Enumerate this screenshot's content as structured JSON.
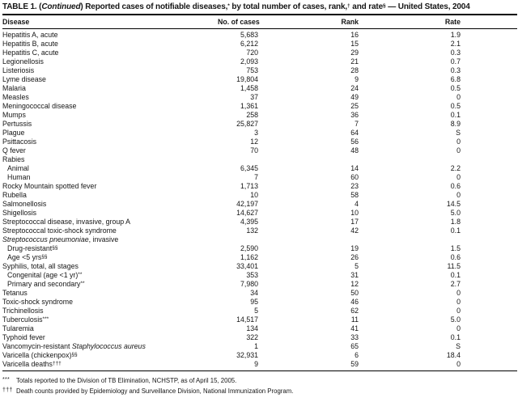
{
  "title": {
    "part1": "TABLE 1. (",
    "continued": "Continued",
    "part2": ") Reported cases of notifiable diseases,",
    "sup1": "*",
    "part3": " by total number of cases, rank,",
    "sup2": "†",
    "part4": " and rate",
    "sup3": "§",
    "part5": " — United States, 2004"
  },
  "table": {
    "headers": {
      "disease": "Disease",
      "cases": "No. of cases",
      "rank": "Rank",
      "rate": "Rate"
    },
    "rows": [
      {
        "pre": "Hepatitis A, acute",
        "cases": "5,683",
        "rank": "16",
        "rate": "1.9"
      },
      {
        "pre": "Hepatitis B, acute",
        "cases": "6,212",
        "rank": "15",
        "rate": "2.1"
      },
      {
        "pre": "Hepatitis C, acute",
        "cases": "720",
        "rank": "29",
        "rate": "0.3"
      },
      {
        "pre": "Legionellosis",
        "cases": "2,093",
        "rank": "21",
        "rate": "0.7"
      },
      {
        "pre": "Listeriosis",
        "cases": "753",
        "rank": "28",
        "rate": "0.3"
      },
      {
        "pre": "Lyme disease",
        "cases": "19,804",
        "rank": "9",
        "rate": "6.8"
      },
      {
        "pre": "Malaria",
        "cases": "1,458",
        "rank": "24",
        "rate": "0.5"
      },
      {
        "pre": "Measles",
        "cases": "37",
        "rank": "49",
        "rate": "0"
      },
      {
        "pre": "Meningococcal disease",
        "cases": "1,361",
        "rank": "25",
        "rate": "0.5"
      },
      {
        "pre": "Mumps",
        "cases": "258",
        "rank": "36",
        "rate": "0.1"
      },
      {
        "pre": "Pertussis",
        "cases": "25,827",
        "rank": "7",
        "rate": "8.9"
      },
      {
        "pre": "Plague",
        "cases": "3",
        "rank": "64",
        "rate": "S"
      },
      {
        "pre": "Psittacosis",
        "cases": "12",
        "rank": "56",
        "rate": "0"
      },
      {
        "pre": "Q fever",
        "cases": "70",
        "rank": "48",
        "rate": "0"
      },
      {
        "pre": "Rabies",
        "cases": "",
        "rank": "",
        "rate": ""
      },
      {
        "pre": "Animal",
        "indent": true,
        "cases": "6,345",
        "rank": "14",
        "rate": "2.2"
      },
      {
        "pre": "Human",
        "indent": true,
        "cases": "7",
        "rank": "60",
        "rate": "0"
      },
      {
        "pre": "Rocky Mountain spotted fever",
        "cases": "1,713",
        "rank": "23",
        "rate": "0.6"
      },
      {
        "pre": "Rubella",
        "cases": "10",
        "rank": "58",
        "rate": "0"
      },
      {
        "pre": "Salmonellosis",
        "cases": "42,197",
        "rank": "4",
        "rate": "14.5"
      },
      {
        "pre": "Shigellosis",
        "cases": "14,627",
        "rank": "10",
        "rate": "5.0"
      },
      {
        "pre": "Streptococcal disease, invasive, group A",
        "cases": "4,395",
        "rank": "17",
        "rate": "1.8"
      },
      {
        "pre": "Streptococcal toxic-shock syndrome",
        "cases": "132",
        "rank": "42",
        "rate": "0.1"
      },
      {
        "italic": "Streptococcus pneumoniae",
        "post": ", invasive",
        "cases": "",
        "rank": "",
        "rate": ""
      },
      {
        "pre": "Drug-resistant",
        "sup": "§§",
        "indent": true,
        "cases": "2,590",
        "rank": "19",
        "rate": "1.5"
      },
      {
        "pre": "Age <5 yrs",
        "sup": "§§",
        "indent": true,
        "cases": "1,162",
        "rank": "26",
        "rate": "0.6"
      },
      {
        "pre": "Syphilis, total, all stages",
        "cases": "33,401",
        "rank": "5",
        "rate": "11.5"
      },
      {
        "pre": "Congenital (age <1 yr)",
        "sup": "**",
        "indent": true,
        "cases": "353",
        "rank": "31",
        "rate": "0.1"
      },
      {
        "pre": "Primary and secondary",
        "sup": "**",
        "indent": true,
        "cases": "7,980",
        "rank": "12",
        "rate": "2.7"
      },
      {
        "pre": "Tetanus",
        "cases": "34",
        "rank": "50",
        "rate": "0"
      },
      {
        "pre": "Toxic-shock syndrome",
        "cases": "95",
        "rank": "46",
        "rate": "0"
      },
      {
        "pre": "Trichinellosis",
        "cases": "5",
        "rank": "62",
        "rate": "0"
      },
      {
        "pre": "Tuberculosis",
        "sup": "***",
        "cases": "14,517",
        "rank": "11",
        "rate": "5.0"
      },
      {
        "pre": "Tularemia",
        "cases": "134",
        "rank": "41",
        "rate": "0"
      },
      {
        "pre": "Typhoid fever",
        "cases": "322",
        "rank": "33",
        "rate": "0.1"
      },
      {
        "pre": "Vancomycin-resistant ",
        "italic": "Staphylococcus aureus",
        "cases": "1",
        "rank": "65",
        "rate": "S"
      },
      {
        "pre": "Varicella (chickenpox)",
        "sup": "§§",
        "cases": "32,931",
        "rank": "6",
        "rate": "18.4"
      },
      {
        "pre": "Varicella deaths",
        "sup": "†††",
        "cases": "9",
        "rank": "59",
        "rate": "0"
      }
    ]
  },
  "footnotes": [
    {
      "marker": "***",
      "text": "Totals reported to the Division of TB Elimination, NCHSTP, as of April 15, 2005."
    },
    {
      "marker": "†††",
      "text": "Death counts provided by Epidemiology and Surveillance Division, National Immunization Program."
    }
  ]
}
